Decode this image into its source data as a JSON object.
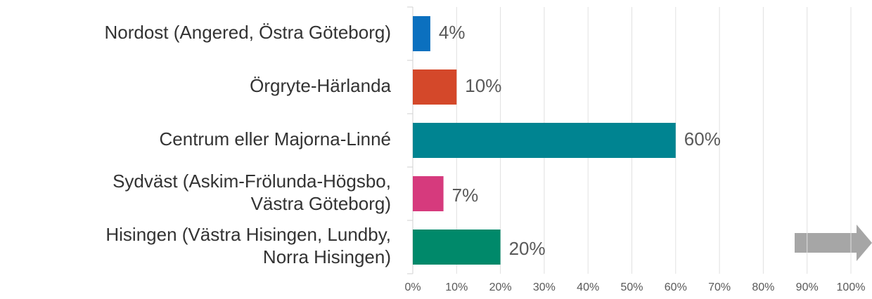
{
  "chart_data": {
    "type": "hbar",
    "categories": [
      [
        "Nordost (Angered, Östra Göteborg)"
      ],
      [
        "Örgryte-Härlanda"
      ],
      [
        "Centrum eller Majorna-Linné"
      ],
      [
        "Sydväst (Askim-Frölunda-Högsbo,",
        "Västra Göteborg)"
      ],
      [
        "Hisingen (Västra Hisingen, Lundby,",
        "Norra Hisingen)"
      ]
    ],
    "values": [
      4,
      10,
      60,
      7,
      20
    ],
    "value_labels": [
      "4%",
      "10%",
      "60%",
      "7%",
      "20%"
    ],
    "colors": [
      "#0b70bf",
      "#d4482a",
      "#008491",
      "#d63a7d",
      "#00896a"
    ],
    "xlim": [
      0,
      100
    ],
    "xticks": [
      {
        "value": 0,
        "label": "0%"
      },
      {
        "value": 10,
        "label": "10%"
      },
      {
        "value": 20,
        "label": "20%"
      },
      {
        "value": 30,
        "label": "30%"
      },
      {
        "value": 40,
        "label": "40%"
      },
      {
        "value": 50,
        "label": "50%"
      },
      {
        "value": 60,
        "label": "60%"
      },
      {
        "value": 70,
        "label": "70%"
      },
      {
        "value": 80,
        "label": "80%"
      },
      {
        "value": 90,
        "label": "90%"
      },
      {
        "value": 100,
        "label": "100%"
      }
    ],
    "grid": true
  }
}
